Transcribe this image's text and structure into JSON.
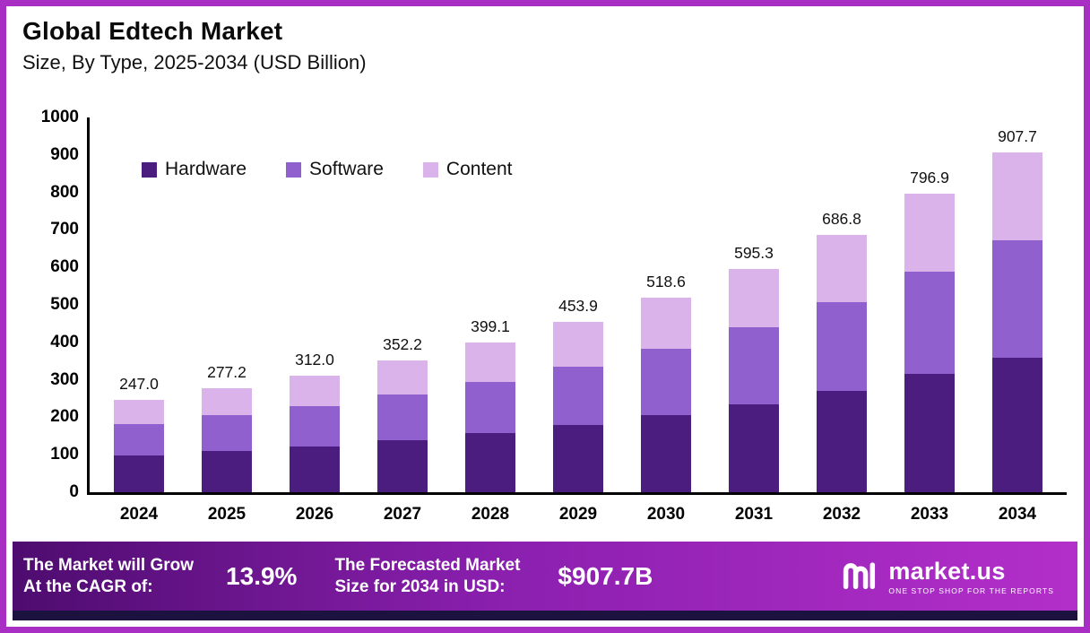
{
  "header": {
    "title": "Global Edtech Market",
    "subtitle": "Size, By Type, 2025-2034 (USD Billion)"
  },
  "colors": {
    "frame": "#a92fc4",
    "hardware": "#4a1d7e",
    "software": "#9061ce",
    "content": "#d9b3ea",
    "footer_gradient_start": "#4e0c6f",
    "footer_gradient_end": "#b32fca"
  },
  "chart_data": {
    "type": "bar",
    "stacked": true,
    "grid": false,
    "legend_position": "top-left-inside",
    "categories": [
      "2024",
      "2025",
      "2026",
      "2027",
      "2028",
      "2029",
      "2030",
      "2031",
      "2032",
      "2033",
      "2034"
    ],
    "series": [
      {
        "name": "Hardware",
        "color": "#4a1d7e",
        "values": [
          97.6,
          109.5,
          123.2,
          139.1,
          157.6,
          179.3,
          204.8,
          235.1,
          271.3,
          314.8,
          358.5
        ]
      },
      {
        "name": "Software",
        "color": "#9061ce",
        "values": [
          85.2,
          95.6,
          107.6,
          121.5,
          137.7,
          156.6,
          178.9,
          205.4,
          236.9,
          274.9,
          313.2
        ]
      },
      {
        "name": "Content",
        "color": "#d9b3ea",
        "values": [
          64.2,
          72.1,
          81.2,
          91.6,
          103.8,
          118.0,
          134.9,
          154.8,
          178.6,
          207.2,
          236.0
        ]
      }
    ],
    "totals": [
      247.0,
      277.2,
      312.0,
      352.2,
      399.1,
      453.9,
      518.6,
      595.3,
      686.8,
      796.9,
      907.7
    ],
    "total_labels": [
      "247.0",
      "277.2",
      "312.0",
      "352.2",
      "399.1",
      "453.9",
      "518.6",
      "595.3",
      "686.8",
      "796.9",
      "907.7"
    ],
    "ylim": [
      0,
      1000
    ],
    "yticks": [
      0,
      100,
      200,
      300,
      400,
      500,
      600,
      700,
      800,
      900,
      1000
    ]
  },
  "footer": {
    "cagr_label_line1": "The Market will Grow",
    "cagr_label_line2": "At the CAGR of:",
    "cagr_value": "13.9%",
    "forecast_label_line1": "The Forecasted Market",
    "forecast_label_line2": "Size for 2034 in USD:",
    "forecast_value": "$907.7B",
    "brand": "market.us",
    "tagline": "ONE STOP SHOP FOR THE REPORTS"
  }
}
